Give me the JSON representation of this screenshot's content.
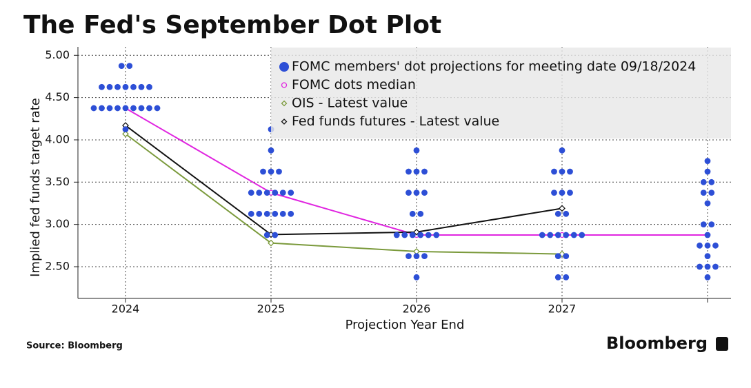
{
  "chart_data": {
    "type": "dot",
    "title": "The Fed's September Dot Plot",
    "y_label": "Implied fed funds target rate",
    "x_label": "Projection Year End",
    "source": "Source: Bloomberg",
    "brand": "Bloomberg",
    "categories": [
      "2024",
      "2025",
      "2026",
      "2027",
      null
    ],
    "ylim": [
      2.125,
      5.1
    ],
    "yticks": [
      {
        "value": 2.5,
        "label": "2.50"
      },
      {
        "value": 3,
        "label": "3.00"
      },
      {
        "value": 3.5,
        "label": "3.50"
      },
      {
        "value": 4,
        "label": "4.00"
      },
      {
        "value": 4.5,
        "label": "4.50"
      },
      {
        "value": 5,
        "label": "5.00"
      }
    ],
    "grid": true,
    "legend": "top-right",
    "series": [
      {
        "name": "FOMC members' dot projections for meeting date 09/18/2024",
        "color": "#2d4fd6",
        "marker": "dot",
        "values": [
          [
            4.875,
            4.875,
            4.625,
            4.625,
            4.625,
            4.625,
            4.625,
            4.625,
            4.625,
            4.375,
            4.375,
            4.375,
            4.375,
            4.375,
            4.375,
            4.375,
            4.375,
            4.375,
            4.125
          ],
          [
            4.125,
            3.875,
            3.625,
            3.625,
            3.625,
            3.375,
            3.375,
            3.375,
            3.375,
            3.375,
            3.375,
            3.125,
            3.125,
            3.125,
            3.125,
            3.125,
            3.125,
            2.875,
            2.875
          ],
          [
            3.875,
            3.625,
            3.625,
            3.625,
            3.375,
            3.375,
            3.375,
            3.125,
            3.125,
            2.875,
            2.875,
            2.875,
            2.875,
            2.875,
            2.875,
            2.625,
            2.625,
            2.625,
            2.375
          ],
          [
            3.875,
            3.625,
            3.625,
            3.625,
            3.375,
            3.375,
            3.375,
            3.125,
            3.125,
            2.875,
            2.875,
            2.875,
            2.875,
            2.875,
            2.875,
            2.625,
            2.625,
            2.375,
            2.375
          ],
          [
            3.75,
            3.625,
            3.5,
            3.5,
            3.375,
            3.375,
            3.25,
            3,
            3,
            2.875,
            2.75,
            2.75,
            2.75,
            2.625,
            2.5,
            2.5,
            2.5,
            2.375
          ]
        ]
      },
      {
        "name": "FOMC dots median",
        "color": "#e025e0",
        "marker": "circle",
        "values": [
          4.375,
          3.375,
          2.875,
          2.875,
          2.875
        ]
      },
      {
        "name": "OIS - Latest value",
        "color": "#7b9a3c",
        "marker": "diamond",
        "values": [
          4.07,
          2.78,
          2.68,
          2.65,
          null
        ]
      },
      {
        "name": "Fed funds futures - Latest value",
        "color": "#111111",
        "marker": "diamond",
        "values": [
          4.17,
          2.88,
          2.91,
          3.19,
          null
        ]
      }
    ]
  }
}
